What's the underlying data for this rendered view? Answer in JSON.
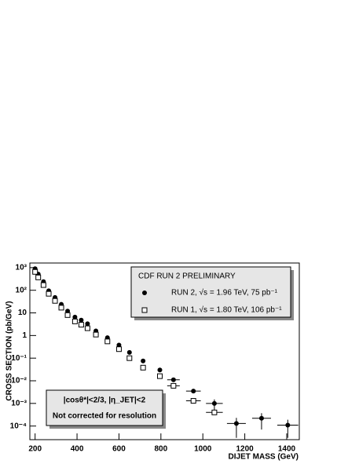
{
  "chart_data": {
    "type": "scatter",
    "xlabel": "DIJET MASS (GeV)",
    "ylabel": "CROSS  SECTION (pb/GeV)",
    "log_y": true,
    "x": [
      200,
      215,
      240,
      265,
      295,
      325,
      355,
      390,
      420,
      450,
      490,
      545,
      600,
      650,
      715,
      795,
      860,
      955,
      1055,
      1160,
      1280,
      1405
    ],
    "series": [
      {
        "name": "RUN 2,  √s = 1.96 TeV,   75 pb⁻¹",
        "marker": "circle",
        "color": "#000000",
        "values": [
          900,
          520,
          240,
          95,
          48,
          24,
          12,
          6.5,
          4.8,
          3.3,
          1.6,
          0.8,
          0.38,
          0.18,
          0.075,
          0.03,
          0.011,
          0.0035,
          0.001,
          0.00013,
          0.00022,
          0.00011
        ],
        "xerr": [
          null,
          null,
          null,
          null,
          null,
          null,
          null,
          null,
          null,
          null,
          null,
          null,
          null,
          null,
          null,
          null,
          30,
          35,
          40,
          45,
          45,
          50
        ],
        "yerr": [
          null,
          null,
          null,
          null,
          null,
          null,
          null,
          null,
          null,
          null,
          null,
          null,
          null,
          null,
          null,
          null,
          null,
          null,
          0.0005,
          0.0001,
          0.00015,
          8e-05
        ]
      },
      {
        "name": "RUN 1,  √s = 1.80 TeV,   106 pb⁻¹",
        "marker": "square",
        "color": "#000000",
        "values": [
          650,
          370,
          170,
          70,
          34,
          17,
          8,
          4.2,
          3.0,
          2.1,
          1.1,
          0.55,
          0.25,
          0.1,
          0.038,
          0.016,
          0.006,
          0.0013,
          0.0004,
          null,
          null,
          null
        ],
        "xerr": [
          null,
          null,
          null,
          null,
          null,
          null,
          null,
          null,
          null,
          null,
          null,
          null,
          null,
          null,
          null,
          null,
          30,
          35,
          40,
          null,
          null,
          null
        ]
      }
    ],
    "xlim": [
      175,
      1460
    ],
    "ylim": [
      2.5e-05,
      1600
    ],
    "xticks": [
      200,
      400,
      600,
      800,
      1000,
      1200,
      1400
    ],
    "yticks": [
      {
        "value": 0.0001,
        "label": "10⁻⁴"
      },
      {
        "value": 0.001,
        "label": "10⁻³"
      },
      {
        "value": 0.01,
        "label": "10⁻²"
      },
      {
        "value": 0.1,
        "label": "10⁻¹"
      },
      1,
      10,
      {
        "value": 100,
        "label": "10²"
      },
      {
        "value": 1000,
        "label": "10³"
      }
    ],
    "legend_title": "CDF RUN 2 PRELIMINARY",
    "legend_position": "upper right",
    "annotations": [
      "|cosθ*|<2/3,  |η_JET|<2",
      "Not corrected for resolution"
    ]
  }
}
